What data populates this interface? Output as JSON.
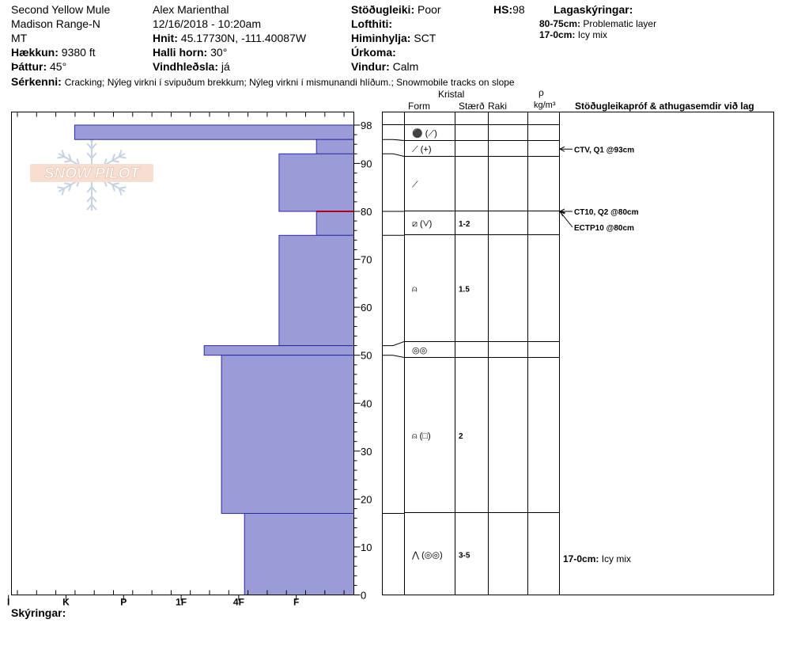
{
  "header": {
    "location_name": "Second Yellow Mule",
    "range": "Madison Range-N",
    "state": "MT",
    "elevation": {
      "label": "Hækkun:",
      "value": "9380 ft"
    },
    "aspect": {
      "label": "Þáttur:",
      "value": "45°"
    },
    "observer": "Alex Marienthal",
    "datetime": "12/16/2018 - 10:20am",
    "coords": {
      "label": "Hnit:",
      "value": "45.17730N, -111.40087W"
    },
    "slope_angle": {
      "label": "Halli horn:",
      "value": "30°"
    },
    "wind_loading": {
      "label": "Vindhleðsla:",
      "value": "já"
    },
    "stability": {
      "label": "Stöðugleiki:",
      "value": "Poor"
    },
    "air_temp": {
      "label": "Lofthiti:",
      "value": ""
    },
    "sky": {
      "label": "Himinhylja:",
      "value": "SCT"
    },
    "precip": {
      "label": "Úrkoma:",
      "value": ""
    },
    "wind": {
      "label": "Vindur:",
      "value": "Calm"
    },
    "hs": {
      "label": "HS:",
      "value": "98"
    },
    "features_label": "Sérkenni:",
    "features_text": "Cracking;  Nýleg virkni í svipuðum brekkum;  Nýleg virkni í mismunandi hlíðum.;  Snowmobile tracks on slope"
  },
  "legend": {
    "title": "Lagaskýringar:",
    "items": [
      {
        "depth": "80-75cm:",
        "text": "Problematic layer"
      },
      {
        "depth": "17-0cm:",
        "text": "Icy mix"
      }
    ]
  },
  "logo_text": "SNOW PILOT",
  "columns": {
    "kristal": "Kristal",
    "form": "Form",
    "size": "Stærð",
    "moisture": "Raki",
    "rho": "ρ",
    "density_unit": "kg/m³",
    "tests_header": "Stöðugleikapróf & athugasemdir við lag"
  },
  "chart_data": {
    "type": "bar",
    "hardness_ticks": [
      "I",
      "K",
      "P",
      "1F",
      "4F",
      "F"
    ],
    "hardness_scale_note": "I=6 (hardest, left) ... F=1 (softest, right)",
    "depth_axis": {
      "min": 0,
      "max": 98,
      "ticks": [
        0,
        10,
        20,
        30,
        40,
        50,
        60,
        70,
        80,
        90,
        98
      ]
    },
    "layers": [
      {
        "top": 98,
        "bottom": 95,
        "hardness": 4.85
      },
      {
        "top": 95,
        "bottom": 92,
        "hardness": 0.65
      },
      {
        "top": 92,
        "bottom": 80,
        "hardness": 1.3
      },
      {
        "top": 80,
        "bottom": 75,
        "hardness": 0.65,
        "problematic": true
      },
      {
        "top": 75,
        "bottom": 52,
        "hardness": 1.3
      },
      {
        "top": 52,
        "bottom": 50,
        "hardness": 2.6
      },
      {
        "top": 50,
        "bottom": 17,
        "hardness": 2.3
      },
      {
        "top": 17,
        "bottom": 0,
        "hardness": 1.9
      }
    ]
  },
  "grain_layers": [
    {
      "top": 98,
      "bottom": 95,
      "form": "⚫ (⟋)",
      "size": ""
    },
    {
      "top": 95,
      "bottom": 92,
      "form": "⟋ (+)",
      "size": ""
    },
    {
      "top": 92,
      "bottom": 80,
      "form": "⟋",
      "size": ""
    },
    {
      "top": 80,
      "bottom": 75,
      "form": "⧄ (⋁)",
      "size": "1-2"
    },
    {
      "top": 75,
      "bottom": 52,
      "form": "⍝",
      "size": "1.5"
    },
    {
      "top": 52,
      "bottom": 50,
      "form": "◎◎",
      "size": ""
    },
    {
      "top": 50,
      "bottom": 17,
      "form": "⍝ (□)",
      "size": "2"
    },
    {
      "top": 17,
      "bottom": 0,
      "form": "⋀ (◎◎)",
      "size": "3-5"
    }
  ],
  "tests": [
    {
      "depth": 93,
      "text": "CTV, Q1 @93cm"
    },
    {
      "depth": 80,
      "text": "CT10, Q2 @80cm"
    },
    {
      "depth": 80,
      "text": "ECTP10 @80cm",
      "offset": true
    }
  ],
  "layer_comment": {
    "depth": "17-0cm:",
    "text": "Icy mix"
  },
  "footer_label": "Skýringar:"
}
